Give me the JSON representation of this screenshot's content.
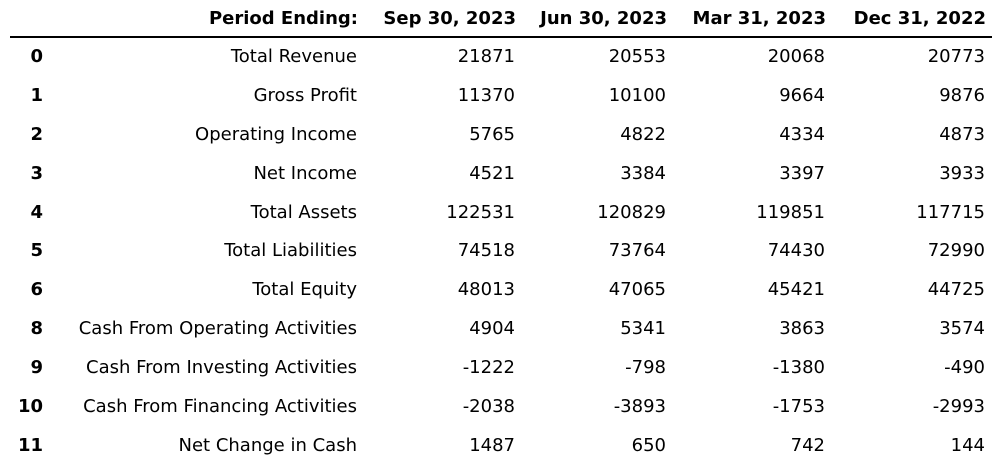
{
  "chart_data": {
    "type": "table",
    "header": {
      "index_label": "",
      "label_column": "Period Ending:",
      "columns": [
        "Sep 30, 2023",
        "Jun 30, 2023",
        "Mar 31, 2023",
        "Dec 31, 2022"
      ]
    },
    "rows": [
      {
        "index": "0",
        "label": "Total Revenue",
        "values": [
          "21871",
          "20553",
          "20068",
          "20773"
        ]
      },
      {
        "index": "1",
        "label": "Gross Profit",
        "values": [
          "11370",
          "10100",
          "9664",
          "9876"
        ]
      },
      {
        "index": "2",
        "label": "Operating Income",
        "values": [
          "5765",
          "4822",
          "4334",
          "4873"
        ]
      },
      {
        "index": "3",
        "label": "Net Income",
        "values": [
          "4521",
          "3384",
          "3397",
          "3933"
        ]
      },
      {
        "index": "4",
        "label": "Total Assets",
        "values": [
          "122531",
          "120829",
          "119851",
          "117715"
        ]
      },
      {
        "index": "5",
        "label": "Total Liabilities",
        "values": [
          "74518",
          "73764",
          "74430",
          "72990"
        ]
      },
      {
        "index": "6",
        "label": "Total Equity",
        "values": [
          "48013",
          "47065",
          "45421",
          "44725"
        ]
      },
      {
        "index": "8",
        "label": "Cash From Operating Activities",
        "values": [
          "4904",
          "5341",
          "3863",
          "3574"
        ]
      },
      {
        "index": "9",
        "label": "Cash From Investing Activities",
        "values": [
          "-1222",
          "-798",
          "-1380",
          "-490"
        ]
      },
      {
        "index": "10",
        "label": "Cash From Financing Activities",
        "values": [
          "-2038",
          "-3893",
          "-1753",
          "-2993"
        ]
      },
      {
        "index": "11",
        "label": "Net Change in Cash",
        "values": [
          "1487",
          "650",
          "742",
          "144"
        ]
      }
    ]
  }
}
